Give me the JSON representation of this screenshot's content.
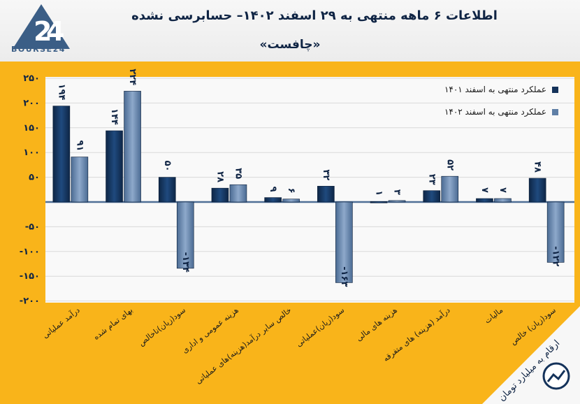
{
  "header": {
    "title": "اطلاعات ۶ ماهه منتهی به ۲۹ اسفند ۱۴۰۲– حسابرسی نشده",
    "subtitle": "«چافست»",
    "logo_text": "BOURSE24"
  },
  "note": "ارقام به میلیارد تومان",
  "colors": {
    "background": "#f9b41a",
    "plot": "#f9f9f9",
    "series1": "#14325a",
    "series2": "#5f7fa6",
    "text": "#0f2444"
  },
  "chart_data": {
    "type": "bar",
    "categories": [
      "درآمد عملیاتی",
      "بهای تمام شده",
      "سود(زیان)ناخالص",
      "هزینه عمومی و اداری",
      "خالص سایر درآمد(هزینه)های عملیاتی",
      "سود(زیان)عملیاتی",
      "هزینه های مالی",
      "درآمد (هزینه) های متفرقه",
      "مالیات",
      "سود(زیان) خالص"
    ],
    "series": [
      {
        "name": "عملکرد منتهی به اسفند ۱۴۰۱",
        "values": [
          194,
          144,
          50,
          28,
          9,
          32,
          1,
          23,
          7,
          48
        ],
        "labels": [
          "۱۹۴",
          "۱۴۴",
          "۵۰",
          "۲۸",
          "۹",
          "۳۲",
          "۱",
          "۲۳",
          "۷",
          "۴۸"
        ]
      },
      {
        "name": "عملکرد منتهی به اسفند ۱۴۰۲",
        "values": [
          91,
          224,
          -134,
          35,
          6,
          -163,
          3,
          52,
          7,
          -122
        ],
        "labels": [
          "۹۱",
          "۲۲۴",
          "-۱۳۴",
          "۳۵",
          "۶",
          "-۱۶۳",
          "۳",
          "۵۲",
          "۷",
          "-۱۲۲"
        ]
      }
    ],
    "yticks": [
      250,
      200,
      150,
      100,
      50,
      -50,
      -100,
      -150,
      -200
    ],
    "ylim": [
      -200,
      250
    ],
    "grid": true,
    "legend_position": "top-right"
  }
}
